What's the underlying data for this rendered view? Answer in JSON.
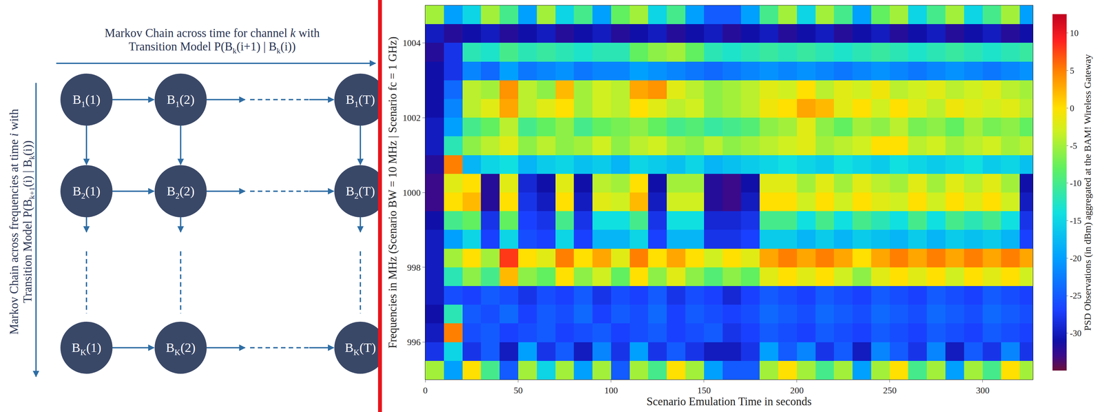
{
  "diagram": {
    "top_label": {
      "lines": [
        [
          {
            "t": "Markov Chain across time for channel "
          },
          {
            "t": "k",
            "italic": true
          },
          {
            "t": " with"
          }
        ],
        [
          {
            "t": "Transition Model P(B"
          },
          {
            "t": "k",
            "sub": true
          },
          {
            "t": "(i+1) | B"
          },
          {
            "t": "k",
            "sub": true
          },
          {
            "t": "(i))"
          }
        ]
      ]
    },
    "side_label": {
      "lines": [
        [
          {
            "t": "Markov Chain across frequencies at time "
          },
          {
            "t": "i",
            "italic": true
          },
          {
            "t": " with"
          }
        ],
        [
          {
            "t": "Transition Model P(B"
          },
          {
            "t": "k+1",
            "sub": true
          },
          {
            "t": "(i) | B"
          },
          {
            "t": "k",
            "sub": true
          },
          {
            "t": "(i))"
          }
        ]
      ]
    },
    "nodes": [
      [
        [
          {
            "t": "B"
          },
          {
            "t": "1",
            "sub": true
          },
          {
            "t": "(1)"
          }
        ],
        [
          {
            "t": "B"
          },
          {
            "t": "1",
            "sub": true
          },
          {
            "t": "(2)"
          }
        ],
        [
          {
            "t": "B"
          },
          {
            "t": "1",
            "sub": true
          },
          {
            "t": "(T)"
          }
        ]
      ],
      [
        [
          {
            "t": "B"
          },
          {
            "t": "2",
            "sub": true
          },
          {
            "t": "(1)"
          }
        ],
        [
          {
            "t": "B"
          },
          {
            "t": "2",
            "sub": true
          },
          {
            "t": "(2)"
          }
        ],
        [
          {
            "t": "B"
          },
          {
            "t": "2",
            "sub": true
          },
          {
            "t": "(T)"
          }
        ]
      ],
      [
        [
          {
            "t": "B"
          },
          {
            "t": "K",
            "sub": true
          },
          {
            "t": "(1)"
          }
        ],
        [
          {
            "t": "B"
          },
          {
            "t": "K",
            "sub": true
          },
          {
            "t": "(2)"
          }
        ],
        [
          {
            "t": "B"
          },
          {
            "t": "K",
            "sub": true
          },
          {
            "t": "(T)"
          }
        ]
      ]
    ]
  },
  "chart_data": {
    "type": "heatmap",
    "x_label": "Scenario Emulation Time in seconds",
    "y_label": "Frequencies in MHz (Scenario BW = 10 MHz | Scenario fc = 1 GHz)",
    "colorbar_label": "PSD Observations (in dBm) aggregated at the BAM! Wireless Gateway",
    "x": [
      5,
      15,
      25,
      35,
      45,
      55,
      65,
      75,
      85,
      95,
      105,
      115,
      125,
      135,
      145,
      155,
      165,
      175,
      185,
      195,
      205,
      215,
      225,
      235,
      245,
      255,
      265,
      275,
      285,
      295,
      305,
      315,
      325
    ],
    "y": [
      995.25,
      995.75,
      996.25,
      996.75,
      997.25,
      997.75,
      998.25,
      998.75,
      999.25,
      999.75,
      1000.25,
      1000.75,
      1001.25,
      1001.75,
      1002.25,
      1002.75,
      1003.25,
      1003.75,
      1004.25,
      1004.75
    ],
    "z": [
      [
        -5,
        -20,
        0,
        -10,
        -25,
        -5,
        -15,
        -5,
        -20,
        -5,
        -25,
        -5,
        -10,
        0,
        -5,
        -20,
        -25,
        -25,
        -5,
        0,
        -5,
        -10,
        -5,
        -20,
        -5,
        0,
        -10,
        -5,
        -20,
        -5,
        -10,
        0,
        -5
      ],
      [
        -28,
        -15,
        -28,
        -25,
        -30,
        -20,
        -28,
        -25,
        -30,
        -22,
        -28,
        -20,
        -28,
        -25,
        -28,
        -30,
        -30,
        -28,
        -20,
        -25,
        -22,
        -28,
        -25,
        -30,
        -22,
        -25,
        -28,
        -22,
        -30,
        -25,
        -28,
        -22,
        -28
      ],
      [
        -30,
        5,
        -26,
        -25,
        -27,
        -26,
        -25,
        -27,
        -26,
        -25,
        -27,
        -26,
        -25,
        -27,
        -26,
        -25,
        -28,
        -27,
        -25,
        -26,
        -27,
        -25,
        -26,
        -27,
        -25,
        -26,
        -27,
        -25,
        -26,
        -27,
        -25,
        -26,
        -27
      ],
      [
        -31,
        -12,
        -25,
        -26,
        -24,
        -27,
        -25,
        -26,
        -24,
        -27,
        -25,
        -26,
        -24,
        -27,
        -25,
        -26,
        -27,
        -26,
        -24,
        -25,
        -26,
        -24,
        -25,
        -26,
        -24,
        -25,
        -26,
        -24,
        -25,
        -26,
        -24,
        -25,
        -26
      ],
      [
        -30,
        -26,
        -27,
        -25,
        -26,
        -28,
        -26,
        -27,
        -25,
        -28,
        -26,
        -27,
        -25,
        -28,
        -26,
        -27,
        -29,
        -27,
        -25,
        -26,
        -27,
        -25,
        -26,
        -27,
        -25,
        -26,
        -27,
        -25,
        -26,
        -27,
        -25,
        -26,
        -27
      ],
      [
        -30,
        -12,
        -6,
        -10,
        2,
        -6,
        -8,
        0,
        -6,
        -3,
        -8,
        0,
        -6,
        -2,
        -6,
        -9,
        -6,
        -8,
        -2,
        0,
        -2,
        0,
        -3,
        -6,
        -2,
        0,
        -2,
        0,
        -3,
        0,
        -2,
        0,
        -3
      ],
      [
        -30,
        -5,
        0,
        -5,
        8,
        0,
        -2,
        5,
        0,
        3,
        -2,
        5,
        0,
        3,
        0,
        -3,
        0,
        -2,
        3,
        5,
        3,
        5,
        3,
        0,
        3,
        5,
        3,
        5,
        3,
        5,
        3,
        5,
        3
      ],
      [
        -30,
        -20,
        -15,
        -27,
        -15,
        -26,
        -27,
        -15,
        -27,
        -18,
        -18,
        -15,
        -27,
        -18,
        -18,
        -28,
        -28,
        -27,
        -16,
        -16,
        -18,
        -16,
        -18,
        -16,
        -17,
        -18,
        -16,
        -18,
        -16,
        -17,
        -16,
        -18,
        -27
      ],
      [
        -31,
        -10,
        -8,
        -28,
        -8,
        -27,
        -28,
        -10,
        -28,
        -14,
        -14,
        -10,
        -28,
        -14,
        -14,
        -29,
        -29,
        -28,
        -10,
        -10,
        -14,
        -10,
        -14,
        -10,
        -12,
        -14,
        -10,
        -14,
        -10,
        -12,
        -10,
        -14,
        -28
      ],
      [
        -33,
        0,
        2,
        -32,
        0,
        -28,
        -30,
        0,
        -30,
        -2,
        -3,
        2,
        -30,
        -3,
        -3,
        -32,
        -33,
        -30,
        0,
        0,
        -3,
        0,
        -3,
        0,
        -2,
        -3,
        0,
        -3,
        0,
        -2,
        0,
        -3,
        -30
      ],
      [
        -33,
        -2,
        0,
        -32,
        -2,
        -29,
        -31,
        -2,
        -31,
        -4,
        -5,
        0,
        -31,
        -5,
        -5,
        -32,
        -33,
        -31,
        -2,
        -2,
        -5,
        -2,
        -5,
        -2,
        -4,
        -5,
        -2,
        -5,
        -2,
        -4,
        -2,
        -5,
        -31
      ],
      [
        -32,
        5,
        -18,
        -15,
        -14,
        -18,
        -16,
        -15,
        -17,
        -16,
        -18,
        -15,
        -16,
        -17,
        -15,
        -18,
        -17,
        -16,
        -15,
        -14,
        -15,
        -16,
        -14,
        -15,
        -16,
        -14,
        -15,
        -16,
        -15,
        -14,
        -16,
        -15,
        -17
      ],
      [
        -30,
        -12,
        -6,
        -4,
        -2,
        -6,
        -4,
        -6,
        -5,
        -3,
        -6,
        -4,
        -3,
        -5,
        -6,
        -4,
        -6,
        -5,
        -4,
        -3,
        -2,
        -5,
        -4,
        -3,
        0,
        0,
        -4,
        -3,
        -5,
        -4,
        -3,
        -5,
        -4
      ],
      [
        -30,
        -20,
        -10,
        -8,
        -4,
        -10,
        -8,
        -6,
        -10,
        -8,
        -7,
        -6,
        -8,
        -10,
        -9,
        -11,
        -10,
        -9,
        -6,
        -5,
        -2,
        -6,
        -8,
        -5,
        -6,
        -4,
        -7,
        -6,
        -8,
        -5,
        -7,
        -6,
        -8
      ],
      [
        -31,
        -22,
        -4,
        -2,
        3,
        -4,
        -2,
        0,
        -5,
        -3,
        -4,
        0,
        -2,
        -4,
        -3,
        -6,
        -5,
        -4,
        -1,
        0,
        3,
        2,
        -2,
        0,
        -3,
        0,
        -2,
        -4,
        -1,
        -2,
        -3,
        -2,
        -4
      ],
      [
        -31,
        -24,
        -4,
        -5,
        4,
        -4,
        -6,
        2,
        -5,
        -3,
        -4,
        3,
        4,
        -2,
        -4,
        -6,
        -5,
        -4,
        -2,
        -3,
        0,
        -4,
        -2,
        -3,
        -1,
        -4,
        -3,
        -2,
        -4,
        -3,
        -2,
        -4,
        -5
      ],
      [
        -31,
        -28,
        -22,
        -24,
        -20,
        -23,
        -22,
        -21,
        -23,
        -22,
        -22,
        -20,
        -21,
        -22,
        -23,
        -24,
        -23,
        -22,
        -21,
        -22,
        -21,
        -22,
        -23,
        -22,
        -21,
        -22,
        -23,
        -22,
        -21,
        -22,
        -23,
        -22,
        -21
      ],
      [
        -32,
        -28,
        -12,
        -13,
        -10,
        -12,
        -11,
        -12,
        -13,
        -12,
        -12,
        -8,
        -6,
        -5,
        -8,
        -12,
        -13,
        -12,
        -11,
        -12,
        -11,
        -12,
        -13,
        -12,
        -11,
        -12,
        -13,
        -12,
        -11,
        -12,
        -13,
        -12,
        -11
      ],
      [
        -30,
        -32,
        -31,
        -30,
        -32,
        -31,
        -30,
        -32,
        -31,
        -30,
        -32,
        -31,
        -30,
        -32,
        -31,
        -30,
        -32,
        -31,
        -30,
        -32,
        -31,
        -30,
        -32,
        -31,
        -30,
        -32,
        -31,
        -30,
        -32,
        -31,
        -30,
        -32,
        -31
      ],
      [
        -5,
        -20,
        -15,
        -5,
        -10,
        -20,
        -5,
        -15,
        -10,
        -20,
        -8,
        -5,
        -15,
        -10,
        -20,
        -25,
        -25,
        -20,
        -10,
        -5,
        -15,
        -5,
        -10,
        -20,
        -8,
        -5,
        -15,
        -10,
        -5,
        -15,
        -10,
        -5,
        -20
      ]
    ],
    "xlim": [
      0,
      327
    ],
    "xticks": [
      0,
      50,
      100,
      150,
      200,
      250,
      300
    ],
    "ylim": [
      995,
      1005
    ],
    "yticks": [
      996,
      998,
      1000,
      1002,
      1004
    ],
    "colorbar_range": [
      -35,
      12.5
    ],
    "colorbar_ticks": [
      -30,
      -25,
      -20,
      -15,
      -10,
      -5,
      0,
      5,
      10
    ]
  }
}
